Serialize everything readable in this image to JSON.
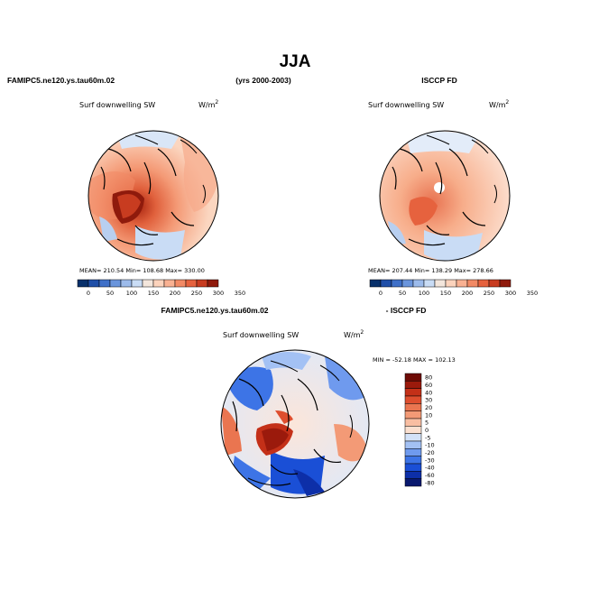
{
  "title": "JJA",
  "case_name": "FAMIPC5.ne120.ys.tau60m.02",
  "years": "(yrs 2000-2003)",
  "obs_name": "ISCCP FD",
  "diff_case_name": "FAMIPC5.ne120.ys.tau60m.02",
  "diff_obs_name": "- ISCCP FD",
  "colors": {
    "abs_scale": [
      "#08306b",
      "#1f4fa8",
      "#3f70c8",
      "#6a95dc",
      "#9cbbeb",
      "#c9dcf5",
      "#f3e6dc",
      "#fcd3bc",
      "#f9b192",
      "#f28a65",
      "#e6623e",
      "#c83c20",
      "#8f1a0c"
    ],
    "diff_scale": [
      "#08186e",
      "#0d2fa8",
      "#1a4fd6",
      "#3d74e6",
      "#6f9aee",
      "#a3c1f4",
      "#d3e2f8",
      "#fbe0d0",
      "#f9bea2",
      "#f39a76",
      "#ea7550",
      "#de4e2e",
      "#c43018",
      "#9b1a0c",
      "#6e0b05"
    ]
  },
  "chart_data": [
    {
      "type": "heatmap",
      "panel": "model",
      "title": "Surf downwelling SW",
      "units_base": "W/m",
      "units_exp": "2",
      "stats_text": "MEAN= 210.54   Min= 108.68   Max= 330.00",
      "mean": 210.54,
      "min": 108.68,
      "max": 330.0,
      "colorbar_ticks": [
        "0",
        "50",
        "100",
        "150",
        "200",
        "250",
        "300",
        "350"
      ],
      "colorbar_levels": [
        0,
        25,
        50,
        75,
        100,
        125,
        150,
        175,
        200,
        225,
        250,
        275,
        300,
        325,
        350
      ]
    },
    {
      "type": "heatmap",
      "panel": "obs",
      "title": "Surf downwelling SW",
      "units_base": "W/m",
      "units_exp": "2",
      "stats_text": "MEAN= 207.44   Min= 138.29   Max= 278.66",
      "mean": 207.44,
      "min": 138.29,
      "max": 278.66,
      "colorbar_ticks": [
        "0",
        "50",
        "100",
        "150",
        "200",
        "250",
        "300",
        "350"
      ],
      "colorbar_levels": [
        0,
        25,
        50,
        75,
        100,
        125,
        150,
        175,
        200,
        225,
        250,
        275,
        300,
        325,
        350
      ]
    },
    {
      "type": "heatmap",
      "panel": "difference",
      "title": "Surf downwelling SW",
      "units_base": "W/m",
      "units_exp": "2",
      "stats_text": "MIN = -52.18  MAX = 102.13",
      "min": -52.18,
      "max": 102.13,
      "colorbar_ticks": [
        "80",
        "60",
        "40",
        "30",
        "20",
        "10",
        "5",
        "0",
        "-5",
        "-10",
        "-20",
        "-30",
        "-40",
        "-60",
        "-80"
      ]
    }
  ]
}
